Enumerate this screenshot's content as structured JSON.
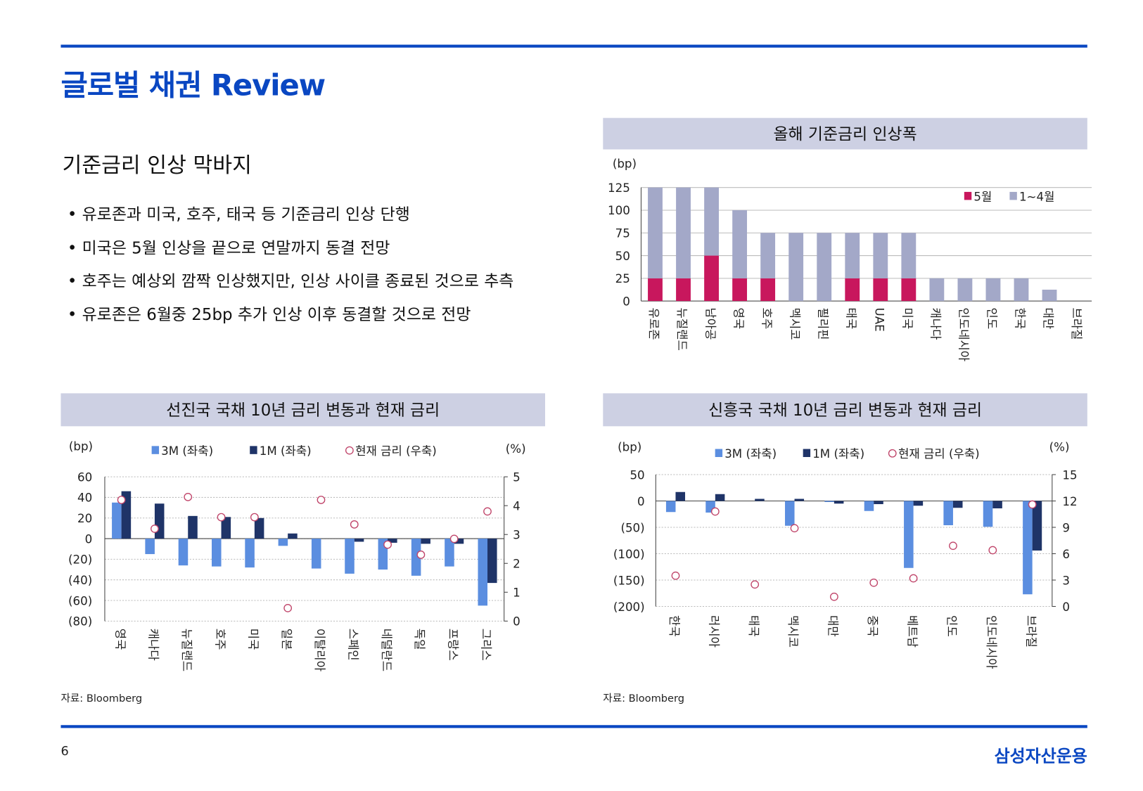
{
  "header": {
    "title": "글로벌 채권 Review"
  },
  "section": {
    "heading": "기준금리 인상 막바지",
    "bullets": [
      "유로존과 미국, 호주, 태국 등 기준금리 인상 단행",
      "미국은 5월 인상을 끝으로 연말까지 동결 전망",
      "호주는 예상외 깜짝 인상했지만, 인상 사이클 종료된 것으로 추측",
      "유로존은 6월중 25bp 추가 인상 이후 동결할 것으로 전망"
    ]
  },
  "chart_data": [
    {
      "type": "bar",
      "stacked": true,
      "title": "올해 기준금리 인상폭",
      "y_label": "(bp)",
      "categories": [
        "유로존",
        "뉴질랜드",
        "남아공",
        "영국",
        "호주",
        "멕시코",
        "필리핀",
        "태국",
        "UAE",
        "미국",
        "캐나다",
        "인도네시아",
        "인도",
        "한국",
        "대만",
        "브라질"
      ],
      "series": [
        {
          "name": "5월",
          "color": "#c8175d",
          "values": [
            25,
            25,
            50,
            25,
            25,
            0,
            0,
            25,
            25,
            25,
            0,
            0,
            0,
            0,
            0,
            0
          ]
        },
        {
          "name": "1~4월",
          "color": "#a3a8c8",
          "values": [
            100,
            100,
            75,
            75,
            50,
            75,
            75,
            50,
            50,
            50,
            25,
            25,
            25,
            25,
            12.5,
            0
          ]
        }
      ],
      "ylim": [
        0,
        125
      ],
      "yticks": [
        0,
        25,
        50,
        75,
        100,
        125
      ],
      "grid": true,
      "legend": "upper right"
    },
    {
      "type": "bar",
      "title": "선진국 국채 10년 금리 변동과 현재 금리",
      "y_label": "(bp)",
      "y2_label": "(%)",
      "categories": [
        "영국",
        "캐나다",
        "뉴질랜드",
        "호주",
        "미국",
        "일본",
        "이탈리아",
        "스페인",
        "네덜란드",
        "독일",
        "프랑스",
        "그리스"
      ],
      "series": [
        {
          "name": "3M (좌축)",
          "color": "#5b8ee0",
          "values": [
            35,
            -15,
            -26,
            -27,
            -28,
            -7,
            -29,
            -34,
            -30,
            -36,
            -27,
            -65
          ]
        },
        {
          "name": "1M (좌축)",
          "color": "#1f3468",
          "values": [
            46,
            34,
            22,
            21,
            20,
            5,
            0,
            -3,
            -4,
            -5,
            -5,
            -43
          ]
        },
        {
          "name": "현재 금리 (우축)",
          "type": "scatter",
          "axis": "y2",
          "color": "#c0456a",
          "values": [
            4.2,
            3.2,
            4.3,
            3.6,
            3.6,
            0.45,
            4.2,
            3.35,
            2.65,
            2.3,
            2.85,
            3.8
          ]
        }
      ],
      "ylim": [
        -80,
        60
      ],
      "yticks": [
        {
          "value": -80,
          "label": "(80)"
        },
        {
          "value": -60,
          "label": "(60)"
        },
        {
          "value": -40,
          "label": "(40)"
        },
        {
          "value": -20,
          "label": "(20)"
        },
        0,
        20,
        40,
        60
      ],
      "y2lim": [
        0,
        5
      ],
      "y2ticks": [
        0,
        1,
        2,
        3,
        4,
        5
      ],
      "grid": true,
      "legend": "top"
    },
    {
      "type": "bar",
      "title": "신흥국 국채 10년 금리 변동과 현재 금리",
      "y_label": "(bp)",
      "y2_label": "(%)",
      "categories": [
        "한국",
        "러시아",
        "태국",
        "멕시코",
        "대만",
        "중국",
        "베트남",
        "인도",
        "인도네시아",
        "브라질"
      ],
      "series": [
        {
          "name": "3M (좌축)",
          "color": "#5b8ee0",
          "values": [
            -21,
            -22,
            0,
            -47,
            -2,
            -19,
            -127,
            -46,
            -49,
            -177
          ]
        },
        {
          "name": "1M (좌축)",
          "color": "#1f3468",
          "values": [
            17,
            13,
            4,
            4,
            -5,
            -6,
            -9,
            -13,
            -14,
            -94
          ]
        },
        {
          "name": "현재 금리 (우축)",
          "type": "scatter",
          "axis": "y2",
          "color": "#c0456a",
          "values": [
            3.5,
            10.8,
            2.5,
            8.9,
            1.1,
            2.7,
            3.2,
            6.9,
            6.4,
            11.6
          ]
        }
      ],
      "ylim": [
        -200,
        50
      ],
      "yticks": [
        {
          "value": -200,
          "label": "(200)"
        },
        {
          "value": -150,
          "label": "(150)"
        },
        {
          "value": -100,
          "label": "(100)"
        },
        {
          "value": -50,
          "label": "(50)"
        },
        0,
        50
      ],
      "y2lim": [
        0,
        15
      ],
      "y2ticks": [
        0,
        3,
        6,
        9,
        12,
        15
      ],
      "grid": true,
      "legend": "top"
    }
  ],
  "sources": [
    "자료: Bloomberg",
    "자료: Bloomberg"
  ],
  "footer": {
    "page": "6",
    "brand": "삼성자산운용"
  }
}
